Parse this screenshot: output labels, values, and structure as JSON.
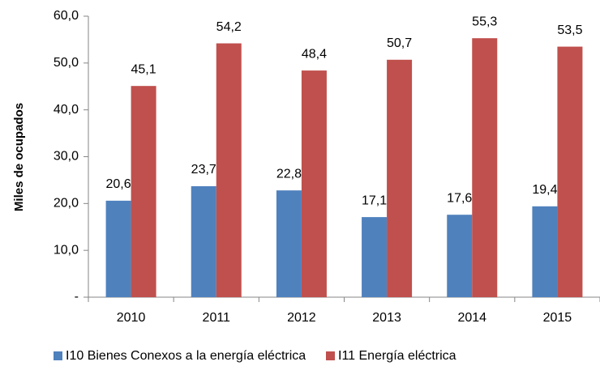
{
  "chart_data": {
    "type": "bar",
    "y_label": "Miles de ocupados",
    "categories": [
      "2010",
      "2011",
      "2012",
      "2013",
      "2014",
      "2015"
    ],
    "series": [
      {
        "name": "I10 Bienes Conexos a la energía eléctrica",
        "color": "#4f81bd",
        "values": [
          20.6,
          23.7,
          22.8,
          17.1,
          17.6,
          19.4
        ],
        "value_labels": [
          "20,6",
          "23,7",
          "22,8",
          "17,1",
          "17,6",
          "19,4"
        ]
      },
      {
        "name": "I11 Energía eléctrica",
        "color": "#c0504d",
        "values": [
          45.1,
          54.2,
          48.4,
          50.7,
          55.3,
          53.5
        ],
        "value_labels": [
          "45,1",
          "54,2",
          "48,4",
          "50,7",
          "55,3",
          "53,5"
        ]
      }
    ],
    "ylim": [
      0,
      60
    ],
    "yticks": [
      {
        "value": 0,
        "label": "-"
      },
      {
        "value": 10,
        "label": "10,0"
      },
      {
        "value": 20,
        "label": "20,0"
      },
      {
        "value": 30,
        "label": "30,0"
      },
      {
        "value": 40,
        "label": "40,0"
      },
      {
        "value": 50,
        "label": "50,0"
      },
      {
        "value": 60,
        "label": "60,0"
      }
    ],
    "legend": "bottom"
  }
}
